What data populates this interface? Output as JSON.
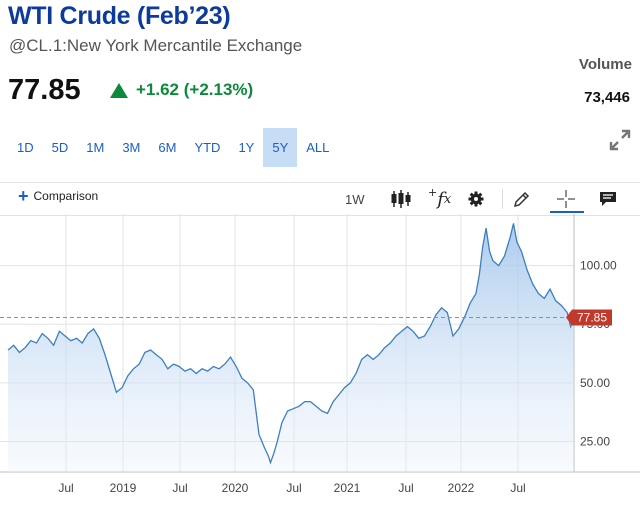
{
  "header": {
    "title": "WTI Crude (Feb’23)",
    "subtitle": "@CL.1:New York Mercantile Exchange",
    "price": "77.85",
    "change": "+1.62 (+2.13%)",
    "volume_label": "Volume",
    "volume_value": "73,446"
  },
  "ranges": [
    "1D",
    "5D",
    "1M",
    "3M",
    "6M",
    "YTD",
    "1Y",
    "5Y",
    "ALL"
  ],
  "active_range": "5Y",
  "toolbar": {
    "comparison_label": "Comparison",
    "interval_label": "1W",
    "icons": [
      "candlestick-icon",
      "function-icon",
      "settings-gear-icon",
      "draw-pencil-icon",
      "crosshair-icon",
      "comment-icon"
    ]
  },
  "colors": {
    "title": "#0d3b9c",
    "up": "#0a8a3a",
    "line": "#3d7ebf",
    "area_top": "#9ec3ea",
    "price_line": "#e07060",
    "price_tag": "#c0392b",
    "link": "#1a5ec8"
  },
  "chart_data": {
    "type": "area",
    "x_tick_labels": [
      "Jul",
      "2019",
      "Jul",
      "2020",
      "Jul",
      "2021",
      "Jul",
      "2022",
      "Jul"
    ],
    "y_tick_labels": [
      "100.00",
      "75.00",
      "50.00",
      "25.00"
    ],
    "y_ticks": [
      100,
      75,
      50,
      25
    ],
    "ylim": [
      12,
      122
    ],
    "xlim": [
      2018.0,
      2022.96
    ],
    "current_price": 77.85,
    "current_price_label": "77.85",
    "grid": true,
    "x": [
      2018.0,
      2018.05,
      2018.1,
      2018.15,
      2018.2,
      2018.25,
      2018.3,
      2018.35,
      2018.4,
      2018.45,
      2018.5,
      2018.55,
      2018.6,
      2018.65,
      2018.7,
      2018.75,
      2018.8,
      2018.85,
      2018.9,
      2018.95,
      2019.0,
      2019.05,
      2019.1,
      2019.15,
      2019.2,
      2019.25,
      2019.3,
      2019.35,
      2019.4,
      2019.45,
      2019.5,
      2019.55,
      2019.6,
      2019.65,
      2019.7,
      2019.75,
      2019.8,
      2019.85,
      2019.9,
      2019.95,
      2020.0,
      2020.05,
      2020.1,
      2020.15,
      2020.2,
      2020.25,
      2020.28,
      2020.3,
      2020.33,
      2020.36,
      2020.4,
      2020.45,
      2020.5,
      2020.55,
      2020.6,
      2020.65,
      2020.7,
      2020.75,
      2020.8,
      2020.85,
      2020.9,
      2020.95,
      2021.0,
      2021.05,
      2021.1,
      2021.15,
      2021.2,
      2021.25,
      2021.3,
      2021.35,
      2021.4,
      2021.45,
      2021.5,
      2021.55,
      2021.6,
      2021.65,
      2021.7,
      2021.75,
      2021.8,
      2021.85,
      2021.9,
      2021.95,
      2022.0,
      2022.05,
      2022.1,
      2022.13,
      2022.16,
      2022.19,
      2022.22,
      2022.25,
      2022.3,
      2022.35,
      2022.4,
      2022.43,
      2022.46,
      2022.5,
      2022.55,
      2022.6,
      2022.65,
      2022.7,
      2022.75,
      2022.8,
      2022.85,
      2022.9,
      2022.93,
      2022.96
    ],
    "y": [
      64,
      66,
      63,
      65,
      68,
      67,
      71,
      69,
      66,
      72,
      70,
      68,
      69,
      67,
      71,
      73,
      69,
      62,
      54,
      46,
      48,
      53,
      56,
      58,
      63,
      64,
      62,
      60,
      56,
      58,
      57,
      55,
      56,
      54,
      56,
      55,
      57,
      56,
      58,
      61,
      57,
      52,
      50,
      47,
      28,
      22,
      19,
      16,
      20,
      25,
      33,
      38,
      39,
      40,
      42,
      42,
      40,
      38,
      37,
      42,
      45,
      48,
      50,
      54,
      60,
      62,
      60,
      62,
      65,
      67,
      70,
      72,
      74,
      72,
      69,
      70,
      74,
      79,
      82,
      80,
      70,
      73,
      78,
      84,
      88,
      96,
      108,
      116,
      106,
      102,
      100,
      104,
      112,
      118,
      110,
      106,
      98,
      92,
      88,
      86,
      90,
      85,
      83,
      80,
      74,
      77.85
    ]
  }
}
